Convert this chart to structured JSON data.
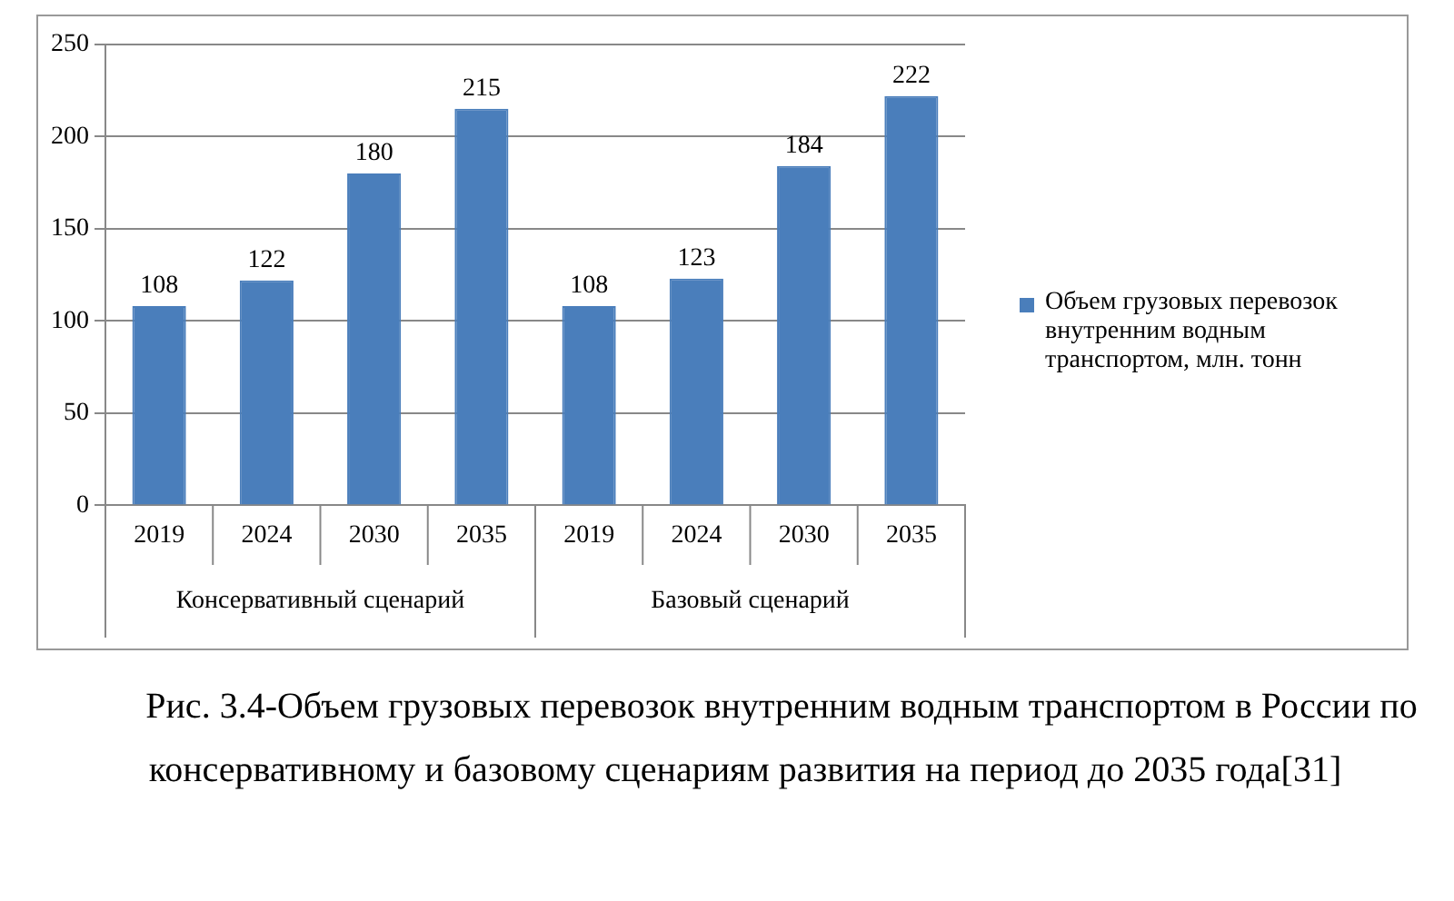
{
  "chart_data": {
    "type": "bar",
    "categories": [
      "2019",
      "2024",
      "2030",
      "2035",
      "2019",
      "2024",
      "2030",
      "2035"
    ],
    "series": [
      {
        "name": "Объем грузовых перевозок внутренним водным транспортом, млн. тонн",
        "color": "#4a7ebb",
        "values": [
          108,
          122,
          180,
          215,
          108,
          123,
          184,
          222
        ]
      }
    ],
    "ylim": [
      0,
      250
    ],
    "yticks": [
      0,
      50,
      100,
      150,
      200,
      250
    ],
    "grid": "y",
    "legend": "right",
    "data_labels": true,
    "annotations": [
      "Консервативный сценарий",
      "Базовый сценарий",
      "Рис. 3.4-Объем грузовых перевозок внутренним водным транспортом в России по консервативному и базовому сценариям развития на период до 2035 года[31]"
    ]
  }
}
